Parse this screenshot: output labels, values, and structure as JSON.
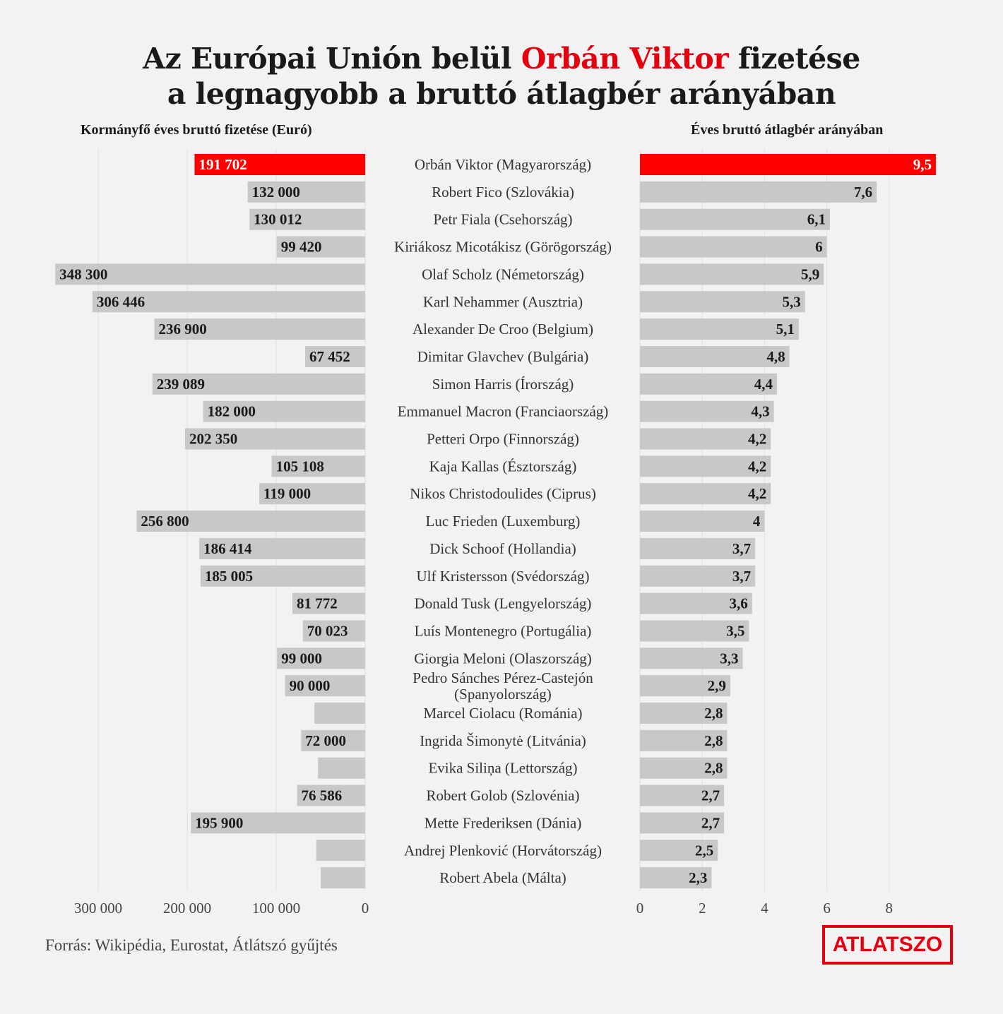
{
  "title": {
    "part1": "Az Európai Unión belül ",
    "highlight": "Orbán Viktor",
    "part2": " fizetése",
    "line2": "a legnagyobb a bruttó átlagbér arányában"
  },
  "left_subtitle": "Kormányfő éves bruttó fizetése (Euró)",
  "right_subtitle": "Éves bruttó átlagbér arányában",
  "source": "Forrás: Wikipédia, Eurostat, Átlátszó gyűjtés",
  "logo": "ATLATSZO",
  "colors": {
    "highlight": "#ff0000",
    "bar": "#c8c8c8",
    "grid": "#e0e0e0"
  },
  "chart_data": [
    {
      "type": "bar",
      "orientation": "horizontal",
      "direction": "right-to-left",
      "title": "Kormányfő éves bruttó fizetése (Euró)",
      "xlim": [
        0,
        350000
      ],
      "ticks": [
        {
          "value": 300000,
          "label": "300 000"
        },
        {
          "value": 200000,
          "label": "200 000"
        },
        {
          "value": 100000,
          "label": "100 000"
        },
        {
          "value": 0,
          "label": "0"
        }
      ],
      "grid": true,
      "categories": [
        "Orbán Viktor (Magyarország)",
        "Robert Fico (Szlovákia)",
        "Petr Fiala (Csehország)",
        "Kiriákosz Micotákisz (Görögország)",
        "Olaf Scholz (Németország)",
        "Karl Nehammer (Ausztria)",
        "Alexander De Croo (Belgium)",
        "Dimitar Glavchev (Bulgária)",
        "Simon Harris (Írország)",
        "Emmanuel Macron (Franciaország)",
        "Petteri Orpo (Finnország)",
        "Kaja Kallas (Észtország)",
        "Nikos Christodoulides (Ciprus)",
        "Luc Frieden (Luxemburg)",
        "Dick Schoof (Hollandia)",
        "Ulf Kristersson (Svédország)",
        "Donald Tusk (Lengyelország)",
        "Luís Montenegro (Portugália)",
        "Giorgia Meloni (Olaszország)",
        "Pedro Sánches Pérez-Castejón (Spanyolország)",
        "Marcel Ciolacu (Románia)",
        "Ingrida Šimonytė (Litvánia)",
        "Evika Siliņa (Lettország)",
        "Robert Golob (Szlovénia)",
        "Mette Frederiksen (Dánia)",
        "Andrej Plenković (Horvátország)",
        "Robert Abela (Málta)"
      ],
      "values": [
        191702,
        132000,
        130012,
        99420,
        348300,
        306446,
        236900,
        67452,
        239089,
        182000,
        202350,
        105108,
        119000,
        256800,
        186414,
        185005,
        81772,
        70023,
        99000,
        90000,
        57000,
        72000,
        53000,
        76586,
        195900,
        55000,
        50000
      ],
      "labels": [
        "191 702",
        "132 000",
        "130 012",
        "99 420",
        "348 300",
        "306 446",
        "236 900",
        "67 452",
        "239 089",
        "182 000",
        "202 350",
        "105 108",
        "119 000",
        "256 800",
        "186 414",
        "185 005",
        "81 772",
        "70 023",
        "99 000",
        "90 000",
        "",
        "72 000",
        "",
        "76 586",
        "195 900",
        "",
        ""
      ],
      "highlight_index": 0
    },
    {
      "type": "bar",
      "orientation": "horizontal",
      "title": "Éves bruttó átlagbér arányában",
      "xlim": [
        0,
        10
      ],
      "ticks": [
        {
          "value": 0,
          "label": "0"
        },
        {
          "value": 2,
          "label": "2"
        },
        {
          "value": 4,
          "label": "4"
        },
        {
          "value": 6,
          "label": "6"
        },
        {
          "value": 8,
          "label": "8"
        }
      ],
      "grid": true,
      "values": [
        9.5,
        7.6,
        6.1,
        6,
        5.9,
        5.3,
        5.1,
        4.8,
        4.4,
        4.3,
        4.2,
        4.2,
        4.2,
        4,
        3.7,
        3.7,
        3.6,
        3.5,
        3.3,
        2.9,
        2.8,
        2.8,
        2.8,
        2.7,
        2.7,
        2.5,
        2.3
      ],
      "labels": [
        "9,5",
        "7,6",
        "6,1",
        "6",
        "5,9",
        "5,3",
        "5,1",
        "4,8",
        "4,4",
        "4,3",
        "4,2",
        "4,2",
        "4,2",
        "4",
        "3,7",
        "3,7",
        "3,6",
        "3,5",
        "3,3",
        "2,9",
        "2,8",
        "2,8",
        "2,8",
        "2,7",
        "2,7",
        "2,5",
        "2,3"
      ],
      "highlight_index": 0
    }
  ]
}
